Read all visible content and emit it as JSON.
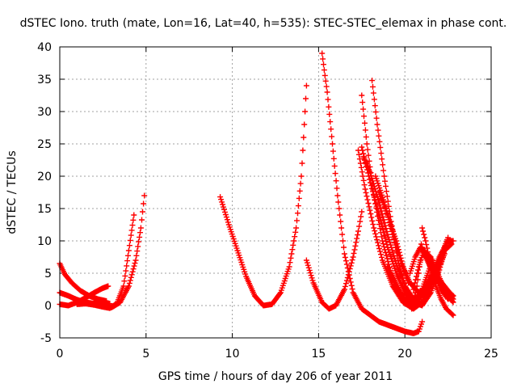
{
  "chart_data": {
    "type": "scatter",
    "title": "dSTEC Iono. truth (mate, Lon=16, Lat=40, h=535): STEC-STEC_elemax in phase cont.",
    "xlabel": "GPS time / hours of day 206 of year 2011",
    "ylabel": "dSTEC  / TECUs",
    "xlim": [
      0,
      25
    ],
    "ylim": [
      -5,
      40
    ],
    "xticks": [
      0,
      5,
      10,
      15,
      20,
      25
    ],
    "yticks": [
      -5,
      0,
      5,
      10,
      15,
      20,
      25,
      30,
      35,
      40
    ],
    "grid": true,
    "marker": "+",
    "color": "#ff0000",
    "series": [
      {
        "points": [
          [
            0,
            6.5
          ],
          [
            0.3,
            4.8
          ],
          [
            0.7,
            3.5
          ],
          [
            1.2,
            2.3
          ],
          [
            1.7,
            1.5
          ],
          [
            2.2,
            1.0
          ],
          [
            2.7,
            0.7
          ]
        ]
      },
      {
        "points": [
          [
            0,
            2.0
          ],
          [
            0.5,
            1.5
          ],
          [
            1.0,
            0.9
          ],
          [
            1.5,
            0.5
          ],
          [
            2.0,
            0.3
          ],
          [
            2.5,
            0.2
          ],
          [
            2.9,
            0.3
          ]
        ]
      },
      {
        "points": [
          [
            0,
            0.2
          ],
          [
            0.5,
            0
          ],
          [
            1.0,
            0.5
          ],
          [
            1.5,
            1.2
          ],
          [
            2.0,
            2.0
          ],
          [
            2.5,
            2.7
          ],
          [
            2.8,
            3.0
          ]
        ]
      },
      {
        "points": [
          [
            1.0,
            0.2
          ],
          [
            1.5,
            0.3
          ],
          [
            2.0,
            0.1
          ],
          [
            2.5,
            -0.2
          ],
          [
            2.9,
            -0.4
          ],
          [
            3.3,
            0.3
          ],
          [
            3.7,
            3.0
          ],
          [
            4.0,
            8.5
          ],
          [
            4.3,
            14.0
          ]
        ]
      },
      {
        "points": [
          [
            2.0,
            0.5
          ],
          [
            2.5,
            0
          ],
          [
            3.0,
            -0.3
          ],
          [
            3.5,
            0.5
          ],
          [
            4.0,
            3.0
          ],
          [
            4.4,
            7.0
          ],
          [
            4.7,
            12.0
          ],
          [
            4.9,
            17.0
          ]
        ]
      },
      {
        "points": [
          [
            9.3,
            16.8
          ],
          [
            9.8,
            12.5
          ],
          [
            10.3,
            8.5
          ],
          [
            10.8,
            4.5
          ],
          [
            11.3,
            1.5
          ],
          [
            11.8,
            0
          ],
          [
            12.3,
            0.2
          ],
          [
            12.8,
            2.0
          ],
          [
            13.3,
            6.0
          ],
          [
            13.7,
            12.0
          ],
          [
            14.0,
            20.0
          ],
          [
            14.3,
            34.0
          ]
        ]
      },
      {
        "points": [
          [
            14.3,
            7.0
          ],
          [
            14.7,
            3.5
          ],
          [
            15.2,
            0.5
          ],
          [
            15.6,
            -0.5
          ],
          [
            16.0,
            0
          ],
          [
            16.5,
            2.5
          ],
          [
            17.0,
            7.5
          ],
          [
            17.3,
            11.5
          ],
          [
            17.5,
            14.5
          ]
        ]
      },
      {
        "points": [
          [
            15.2,
            39.0
          ],
          [
            15.5,
            33.0
          ],
          [
            15.8,
            25.0
          ],
          [
            16.1,
            17.0
          ],
          [
            16.5,
            8.0
          ],
          [
            17.0,
            2.0
          ],
          [
            17.5,
            -0.5
          ],
          [
            18.0,
            -1.5
          ],
          [
            18.5,
            -2.5
          ],
          [
            19.0,
            -3.0
          ],
          [
            19.5,
            -3.5
          ],
          [
            20.0,
            -4.0
          ],
          [
            20.5,
            -4.3
          ],
          [
            20.8,
            -4.0
          ],
          [
            21.0,
            -2.5
          ]
        ]
      },
      {
        "points": [
          [
            17.5,
            32.5
          ],
          [
            17.8,
            25.0
          ],
          [
            18.2,
            17.0
          ],
          [
            18.7,
            10.0
          ],
          [
            19.2,
            5.0
          ],
          [
            19.8,
            1.5
          ],
          [
            20.3,
            0
          ],
          [
            20.8,
            1.0
          ],
          [
            21.2,
            4.0
          ],
          [
            21.6,
            7.0
          ]
        ]
      },
      {
        "points": [
          [
            18.1,
            34.8
          ],
          [
            18.4,
            28.0
          ],
          [
            18.8,
            20.0
          ],
          [
            19.2,
            13.0
          ],
          [
            19.6,
            7.0
          ],
          [
            20.0,
            3.0
          ],
          [
            20.5,
            0.5
          ],
          [
            21.0,
            0
          ],
          [
            21.5,
            2.0
          ],
          [
            22.0,
            5.5
          ],
          [
            22.3,
            8.5
          ]
        ]
      },
      {
        "points": [
          [
            17.3,
            24.0
          ],
          [
            17.7,
            18.0
          ],
          [
            18.2,
            12.0
          ],
          [
            18.7,
            7.0
          ],
          [
            19.3,
            3.0
          ],
          [
            19.9,
            0.5
          ],
          [
            20.5,
            -0.5
          ],
          [
            21.0,
            0.5
          ],
          [
            21.5,
            3.0
          ],
          [
            22.0,
            6.0
          ],
          [
            22.3,
            8.0
          ]
        ]
      },
      {
        "points": [
          [
            17.5,
            24.5
          ],
          [
            18.0,
            19.0
          ],
          [
            18.5,
            14.0
          ],
          [
            19.0,
            9.0
          ],
          [
            19.5,
            5.0
          ],
          [
            20.0,
            2.0
          ],
          [
            20.5,
            0.5
          ],
          [
            21.0,
            1.5
          ],
          [
            21.5,
            4.0
          ],
          [
            22.0,
            7.0
          ],
          [
            22.5,
            10.5
          ]
        ]
      },
      {
        "points": [
          [
            17.6,
            23.0
          ],
          [
            18.0,
            20.5
          ],
          [
            18.5,
            16.0
          ],
          [
            19.0,
            11.0
          ],
          [
            19.5,
            6.5
          ],
          [
            20.0,
            3.0
          ],
          [
            20.5,
            1.0
          ],
          [
            21.0,
            2.0
          ],
          [
            21.5,
            4.5
          ],
          [
            22.0,
            7.5
          ],
          [
            22.5,
            10.0
          ],
          [
            22.8,
            10.0
          ]
        ]
      },
      {
        "points": [
          [
            18.3,
            20.0
          ],
          [
            18.8,
            16.0
          ],
          [
            19.3,
            11.0
          ],
          [
            19.8,
            6.5
          ],
          [
            20.3,
            3.5
          ],
          [
            20.8,
            2.0
          ],
          [
            21.3,
            3.0
          ],
          [
            21.8,
            5.5
          ],
          [
            22.3,
            8.5
          ],
          [
            22.7,
            9.5
          ]
        ]
      },
      {
        "points": [
          [
            18.5,
            17.5
          ],
          [
            19.0,
            14.0
          ],
          [
            19.5,
            10.0
          ],
          [
            19.9,
            6.0
          ],
          [
            20.2,
            3.5
          ]
        ]
      },
      {
        "points": [
          [
            19.0,
            6.0
          ],
          [
            19.5,
            3.0
          ],
          [
            20.0,
            1.0
          ],
          [
            20.5,
            0
          ],
          [
            21.0,
            0.5
          ]
        ]
      },
      {
        "points": [
          [
            20.4,
            -0.5
          ],
          [
            20.7,
            3.0
          ],
          [
            20.9,
            7.0
          ],
          [
            21.0,
            12.0
          ],
          [
            21.2,
            10.0
          ],
          [
            21.5,
            6.0
          ],
          [
            21.8,
            3.0
          ],
          [
            22.1,
            1.0
          ],
          [
            22.4,
            -0.5
          ],
          [
            22.8,
            -1.5
          ]
        ]
      },
      {
        "points": [
          [
            20.5,
            2.5
          ],
          [
            20.8,
            6.0
          ],
          [
            21.1,
            8.5
          ],
          [
            21.5,
            7.5
          ],
          [
            21.9,
            5.0
          ],
          [
            22.3,
            2.5
          ],
          [
            22.8,
            1.0
          ]
        ]
      },
      {
        "points": [
          [
            20.3,
            5.0
          ],
          [
            20.6,
            7.5
          ],
          [
            20.9,
            9.0
          ],
          [
            21.3,
            7.0
          ],
          [
            21.7,
            5.0
          ],
          [
            22.1,
            2.5
          ],
          [
            22.5,
            1.0
          ],
          [
            22.8,
            1.5
          ]
        ]
      },
      {
        "points": [
          [
            21.0,
            9.0
          ],
          [
            21.3,
            7.0
          ],
          [
            21.7,
            4.5
          ],
          [
            22.1,
            3.0
          ],
          [
            22.5,
            1.5
          ],
          [
            22.8,
            0.5
          ]
        ]
      },
      {
        "points": [
          [
            21.4,
            7.0
          ],
          [
            21.7,
            5.5
          ],
          [
            22.0,
            4.0
          ],
          [
            22.3,
            3.0
          ],
          [
            22.6,
            2.0
          ],
          [
            22.8,
            1.5
          ]
        ]
      }
    ]
  }
}
